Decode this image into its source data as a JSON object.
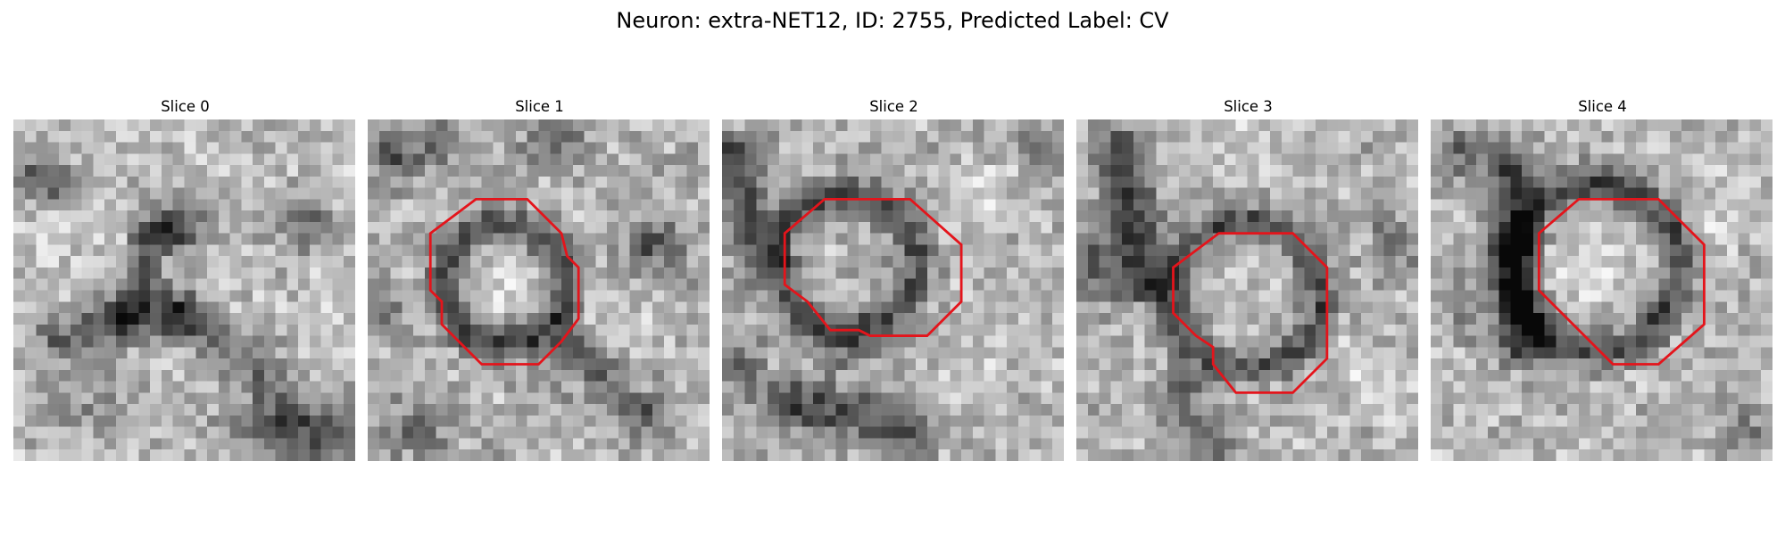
{
  "figure": {
    "title": "Neuron: extra-NET12, ID: 2755, Predicted Label: CV",
    "contour_color": "#e4141b",
    "panels": [
      {
        "title": "Slice 0",
        "has_contour": false
      },
      {
        "title": "Slice 1",
        "has_contour": true
      },
      {
        "title": "Slice 2",
        "has_contour": true
      },
      {
        "title": "Slice 3",
        "has_contour": true
      },
      {
        "title": "Slice 4",
        "has_contour": true
      }
    ]
  }
}
